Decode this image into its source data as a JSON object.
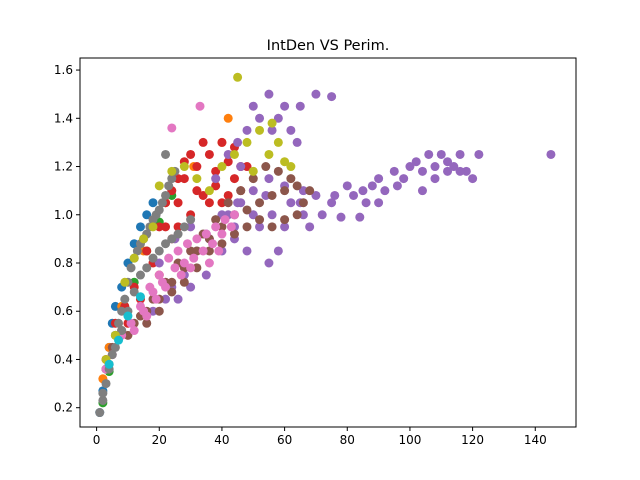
{
  "chart_data": {
    "type": "scatter",
    "title": "IntDen VS Perim.",
    "xlabel": "",
    "ylabel": "",
    "xlim": [
      -5.3,
      153.0
    ],
    "ylim": [
      0.12,
      1.65
    ],
    "xticks": [
      0,
      20,
      40,
      60,
      80,
      100,
      120,
      140
    ],
    "yticks": [
      0.2,
      0.4,
      0.6,
      0.8,
      1.0,
      1.2,
      1.4,
      1.6
    ],
    "xtick_labels": [
      "0",
      "20",
      "40",
      "60",
      "80",
      "100",
      "120",
      "140"
    ],
    "ytick_labels": [
      "0.2",
      "0.4",
      "0.6",
      "0.8",
      "1.0",
      "1.2",
      "1.4",
      "1.6"
    ],
    "grid": false,
    "legend": "none",
    "series": [
      {
        "color": "#1f77b4",
        "points": [
          [
            1,
            0.18
          ],
          [
            2,
            0.27
          ],
          [
            3,
            0.36
          ],
          [
            4,
            0.45
          ],
          [
            5,
            0.55
          ],
          [
            6,
            0.62
          ],
          [
            8,
            0.7
          ],
          [
            10,
            0.8
          ],
          [
            12,
            0.88
          ],
          [
            14,
            0.95
          ],
          [
            16,
            1.0
          ],
          [
            18,
            1.05
          ]
        ]
      },
      {
        "color": "#ff7f0e",
        "points": [
          [
            2,
            0.32
          ],
          [
            4,
            0.45
          ],
          [
            8,
            0.62
          ],
          [
            15,
            0.85
          ],
          [
            22,
            1.05
          ],
          [
            31,
            1.2
          ],
          [
            40,
            1.3
          ],
          [
            42,
            1.4
          ]
        ]
      },
      {
        "color": "#2ca02c",
        "points": [
          [
            2,
            0.22
          ],
          [
            4,
            0.35
          ],
          [
            6,
            0.5
          ],
          [
            9,
            0.62
          ],
          [
            12,
            0.72
          ],
          [
            16,
            0.85
          ],
          [
            20,
            0.97
          ],
          [
            24,
            1.08
          ]
        ]
      },
      {
        "color": "#d62728",
        "points": [
          [
            3,
            0.4
          ],
          [
            6,
            0.55
          ],
          [
            9,
            0.62
          ],
          [
            12,
            0.7
          ],
          [
            16,
            0.85
          ],
          [
            20,
            0.95
          ],
          [
            22,
            1.05
          ],
          [
            24,
            1.1
          ],
          [
            26,
            1.15
          ],
          [
            28,
            1.22
          ],
          [
            30,
            1.25
          ],
          [
            32,
            1.2
          ],
          [
            34,
            1.3
          ],
          [
            36,
            1.25
          ],
          [
            38,
            1.18
          ],
          [
            40,
            1.3
          ],
          [
            42,
            1.22
          ],
          [
            44,
            1.28
          ],
          [
            46,
            1.1
          ],
          [
            48,
            1.2
          ],
          [
            34,
            1.08
          ],
          [
            38,
            1.12
          ],
          [
            42,
            1.08
          ],
          [
            36,
            1.05
          ],
          [
            30,
            1.0
          ],
          [
            28,
            1.15
          ],
          [
            26,
            0.95
          ],
          [
            24,
            0.9
          ],
          [
            20,
            0.75
          ],
          [
            18,
            0.8
          ],
          [
            14,
            0.65
          ],
          [
            10,
            0.55
          ],
          [
            44,
            1.15
          ],
          [
            46,
            1.2
          ],
          [
            40,
            1.05
          ],
          [
            32,
            1.1
          ],
          [
            26,
            1.05
          ],
          [
            22,
            0.95
          ]
        ]
      },
      {
        "color": "#9467bd",
        "points": [
          [
            20,
            0.8
          ],
          [
            25,
            0.9
          ],
          [
            30,
            0.95
          ],
          [
            35,
            0.92
          ],
          [
            40,
            1.0
          ],
          [
            45,
            1.05
          ],
          [
            50,
            1.1
          ],
          [
            55,
            1.15
          ],
          [
            60,
            1.12
          ],
          [
            65,
            1.05
          ],
          [
            70,
            1.08
          ],
          [
            75,
            1.05
          ],
          [
            80,
            1.12
          ],
          [
            85,
            1.1
          ],
          [
            90,
            1.15
          ],
          [
            95,
            1.18
          ],
          [
            100,
            1.2
          ],
          [
            102,
            1.22
          ],
          [
            104,
            1.18
          ],
          [
            106,
            1.25
          ],
          [
            108,
            1.2
          ],
          [
            110,
            1.25
          ],
          [
            112,
            1.22
          ],
          [
            114,
            1.2
          ],
          [
            116,
            1.25
          ],
          [
            118,
            1.18
          ],
          [
            120,
            1.15
          ],
          [
            122,
            1.25
          ],
          [
            145,
            1.25
          ],
          [
            50,
            1.45
          ],
          [
            55,
            1.5
          ],
          [
            60,
            1.45
          ],
          [
            65,
            1.45
          ],
          [
            70,
            1.5
          ],
          [
            75,
            1.49
          ],
          [
            48,
            1.35
          ],
          [
            52,
            1.4
          ],
          [
            45,
            1.3
          ],
          [
            42,
            1.25
          ],
          [
            56,
            1.35
          ],
          [
            58,
            1.4
          ],
          [
            62,
            1.35
          ],
          [
            64,
            1.3
          ],
          [
            46,
            1.2
          ],
          [
            38,
            1.15
          ],
          [
            44,
            0.9
          ],
          [
            48,
            0.85
          ],
          [
            55,
            0.8
          ],
          [
            58,
            0.85
          ],
          [
            60,
            0.95
          ],
          [
            66,
            1.0
          ],
          [
            68,
            0.95
          ],
          [
            72,
            1.0
          ],
          [
            76,
            1.08
          ],
          [
            82,
            1.08
          ],
          [
            86,
            1.05
          ],
          [
            88,
            1.12
          ],
          [
            92,
            1.1
          ],
          [
            96,
            1.12
          ],
          [
            98,
            1.15
          ],
          [
            78,
            0.99
          ],
          [
            84,
            0.99
          ],
          [
            90,
            1.05
          ],
          [
            104,
            1.1
          ],
          [
            108,
            1.15
          ],
          [
            112,
            1.18
          ],
          [
            116,
            1.18
          ],
          [
            35,
            0.75
          ],
          [
            30,
            0.7
          ],
          [
            28,
            0.75
          ],
          [
            26,
            0.65
          ],
          [
            32,
            0.85
          ],
          [
            40,
            0.85
          ],
          [
            44,
            0.95
          ],
          [
            52,
            0.95
          ],
          [
            56,
            1.0
          ],
          [
            62,
            1.05
          ],
          [
            66,
            1.1
          ],
          [
            42,
            1.0
          ],
          [
            46,
            1.05
          ],
          [
            50,
            1.0
          ],
          [
            54,
            1.08
          ],
          [
            36,
            0.9
          ],
          [
            24,
            0.7
          ],
          [
            22,
            0.65
          ],
          [
            18,
            0.6
          ]
        ]
      },
      {
        "color": "#8c564b",
        "points": [
          [
            3,
            0.36
          ],
          [
            5,
            0.45
          ],
          [
            8,
            0.52
          ],
          [
            12,
            0.55
          ],
          [
            16,
            0.6
          ],
          [
            20,
            0.65
          ],
          [
            24,
            0.72
          ],
          [
            28,
            0.78
          ],
          [
            32,
            0.85
          ],
          [
            36,
            0.9
          ],
          [
            40,
            0.95
          ],
          [
            44,
            1.0
          ],
          [
            48,
            1.02
          ],
          [
            52,
            1.05
          ],
          [
            56,
            1.08
          ],
          [
            60,
            1.1
          ],
          [
            64,
            1.12
          ],
          [
            68,
            1.1
          ],
          [
            62,
            1.15
          ],
          [
            58,
            1.18
          ],
          [
            54,
            1.2
          ],
          [
            50,
            1.15
          ],
          [
            46,
            1.1
          ],
          [
            42,
            1.05
          ],
          [
            38,
            0.98
          ],
          [
            34,
            0.92
          ],
          [
            30,
            0.85
          ],
          [
            26,
            0.8
          ],
          [
            22,
            0.72
          ],
          [
            18,
            0.65
          ],
          [
            14,
            0.58
          ],
          [
            10,
            0.5
          ],
          [
            56,
            0.95
          ],
          [
            60,
            0.98
          ],
          [
            64,
            1.0
          ],
          [
            66,
            1.05
          ],
          [
            52,
            0.98
          ],
          [
            48,
            0.95
          ],
          [
            44,
            0.92
          ],
          [
            40,
            0.88
          ],
          [
            36,
            0.85
          ],
          [
            32,
            0.78
          ],
          [
            28,
            0.72
          ],
          [
            24,
            0.68
          ],
          [
            20,
            0.6
          ],
          [
            16,
            0.55
          ]
        ]
      },
      {
        "color": "#e377c2",
        "points": [
          [
            3,
            0.36
          ],
          [
            5,
            0.42
          ],
          [
            8,
            0.5
          ],
          [
            11,
            0.55
          ],
          [
            14,
            0.62
          ],
          [
            17,
            0.7
          ],
          [
            20,
            0.75
          ],
          [
            23,
            0.82
          ],
          [
            26,
            0.85
          ],
          [
            29,
            0.88
          ],
          [
            32,
            0.9
          ],
          [
            35,
            0.92
          ],
          [
            38,
            0.95
          ],
          [
            41,
            0.98
          ],
          [
            44,
            1.0
          ],
          [
            24,
            1.36
          ],
          [
            33,
            1.45
          ],
          [
            15,
            0.6
          ],
          [
            18,
            0.68
          ],
          [
            21,
            0.72
          ],
          [
            25,
            0.78
          ],
          [
            28,
            0.8
          ],
          [
            31,
            0.82
          ],
          [
            34,
            0.85
          ],
          [
            37,
            0.88
          ],
          [
            40,
            0.92
          ],
          [
            43,
            0.95
          ],
          [
            12,
            0.52
          ],
          [
            16,
            0.58
          ],
          [
            19,
            0.65
          ],
          [
            22,
            0.7
          ],
          [
            27,
            0.75
          ],
          [
            30,
            0.78
          ],
          [
            36,
            0.8
          ],
          [
            39,
            0.85
          ]
        ]
      },
      {
        "color": "#7f7f7f",
        "points": [
          [
            1,
            0.18
          ],
          [
            2,
            0.23
          ],
          [
            3,
            0.3
          ],
          [
            4,
            0.36
          ],
          [
            5,
            0.42
          ],
          [
            6,
            0.5
          ],
          [
            7,
            0.55
          ],
          [
            8,
            0.6
          ],
          [
            9,
            0.65
          ],
          [
            10,
            0.72
          ],
          [
            11,
            0.78
          ],
          [
            12,
            0.82
          ],
          [
            13,
            0.85
          ],
          [
            14,
            0.88
          ],
          [
            15,
            0.9
          ],
          [
            16,
            0.92
          ],
          [
            17,
            0.95
          ],
          [
            18,
            0.98
          ],
          [
            19,
            1.0
          ],
          [
            20,
            1.02
          ],
          [
            21,
            1.05
          ],
          [
            22,
            1.08
          ],
          [
            23,
            1.12
          ],
          [
            24,
            1.15
          ],
          [
            25,
            1.18
          ],
          [
            22,
            1.25
          ],
          [
            12,
            0.68
          ],
          [
            14,
            0.75
          ],
          [
            16,
            0.78
          ],
          [
            18,
            0.82
          ],
          [
            20,
            0.85
          ],
          [
            22,
            0.88
          ],
          [
            24,
            0.9
          ],
          [
            26,
            0.92
          ],
          [
            28,
            0.95
          ],
          [
            30,
            0.98
          ],
          [
            10,
            0.6
          ],
          [
            8,
            0.52
          ],
          [
            6,
            0.45
          ],
          [
            4,
            0.38
          ],
          [
            2,
            0.26
          ]
        ]
      },
      {
        "color": "#bcbd22",
        "points": [
          [
            3,
            0.4
          ],
          [
            6,
            0.5
          ],
          [
            9,
            0.72
          ],
          [
            12,
            0.82
          ],
          [
            15,
            0.9
          ],
          [
            18,
            0.95
          ],
          [
            20,
            1.12
          ],
          [
            24,
            1.18
          ],
          [
            28,
            1.2
          ],
          [
            32,
            1.15
          ],
          [
            36,
            1.1
          ],
          [
            40,
            1.2
          ],
          [
            44,
            1.25
          ],
          [
            48,
            1.3
          ],
          [
            52,
            1.35
          ],
          [
            56,
            1.38
          ],
          [
            60,
            1.22
          ],
          [
            62,
            1.2
          ],
          [
            45,
            1.57
          ],
          [
            55,
            1.25
          ],
          [
            58,
            1.3
          ],
          [
            50,
            1.18
          ]
        ]
      },
      {
        "color": "#17becf",
        "points": [
          [
            4,
            0.38
          ],
          [
            7,
            0.48
          ],
          [
            10,
            0.58
          ],
          [
            14,
            0.66
          ]
        ]
      }
    ]
  }
}
